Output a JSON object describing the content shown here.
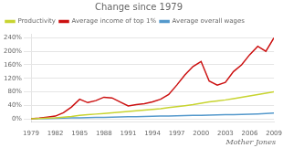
{
  "chart_data": {
    "type": "line",
    "title": "Change since 1979",
    "annotations": [
      "Mother Jones"
    ],
    "x": [
      1979,
      1980,
      1981,
      1982,
      1983,
      1984,
      1985,
      1986,
      1987,
      1988,
      1989,
      1990,
      1991,
      1992,
      1993,
      1994,
      1995,
      1996,
      1997,
      1998,
      1999,
      2000,
      2001,
      2002,
      2003,
      2004,
      2005,
      2006,
      2007,
      2008,
      2009
    ],
    "series": [
      {
        "name": "Productivity",
        "color": "#c8d430",
        "values": [
          0,
          1,
          2,
          3,
          5,
          7,
          10,
          12,
          14,
          16,
          18,
          20,
          22,
          24,
          26,
          28,
          30,
          33,
          36,
          39,
          42,
          46,
          50,
          53,
          56,
          60,
          64,
          68,
          72,
          76,
          80
        ]
      },
      {
        "name": "Average income of top 1%",
        "color": "#cc1111",
        "values": [
          0,
          2,
          5,
          8,
          18,
          35,
          58,
          48,
          54,
          64,
          62,
          50,
          38,
          42,
          45,
          50,
          58,
          72,
          100,
          130,
          155,
          170,
          112,
          100,
          108,
          140,
          160,
          190,
          215,
          200,
          240
        ]
      },
      {
        "name": "Average overall wages",
        "color": "#5599cc",
        "values": [
          0,
          0.5,
          1,
          1.5,
          2,
          2.5,
          3,
          3.5,
          4,
          4.5,
          5,
          5.5,
          6,
          6.5,
          7,
          7.5,
          8,
          8.5,
          9,
          9.5,
          10,
          10.5,
          11,
          11.5,
          12,
          12.5,
          13,
          13.5,
          14.5,
          15.5,
          17
        ]
      }
    ],
    "xlim": [
      1979,
      2009
    ],
    "xticks": [
      1979,
      1982,
      1985,
      1988,
      1991,
      1994,
      1997,
      2000,
      2003,
      2006,
      2009
    ],
    "ylim": [
      -8,
      252
    ],
    "yticks": [
      {
        "value": 0,
        "label": "0%"
      },
      {
        "value": 40,
        "label": "40%"
      },
      {
        "value": 80,
        "label": "80%"
      },
      {
        "value": 120,
        "label": "120%"
      },
      {
        "value": 160,
        "label": "160%"
      },
      {
        "value": 200,
        "label": "200%"
      },
      {
        "value": 240,
        "label": "240%"
      }
    ],
    "grid": "y",
    "legend": "top"
  }
}
